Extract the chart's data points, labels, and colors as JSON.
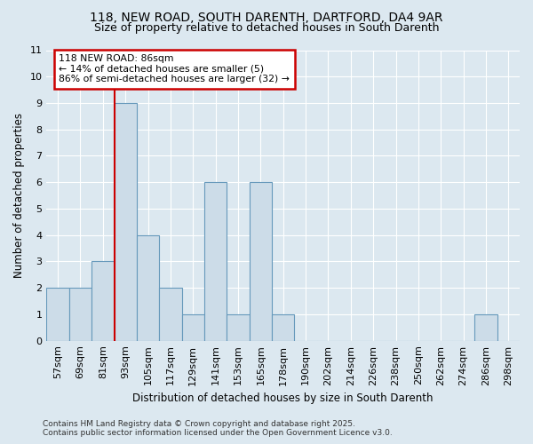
{
  "title_line1": "118, NEW ROAD, SOUTH DARENTH, DARTFORD, DA4 9AR",
  "title_line2": "Size of property relative to detached houses in South Darenth",
  "xlabel": "Distribution of detached houses by size in South Darenth",
  "ylabel": "Number of detached properties",
  "categories": [
    "57sqm",
    "69sqm",
    "81sqm",
    "93sqm",
    "105sqm",
    "117sqm",
    "129sqm",
    "141sqm",
    "153sqm",
    "165sqm",
    "178sqm",
    "190sqm",
    "202sqm",
    "214sqm",
    "226sqm",
    "238sqm",
    "250sqm",
    "262sqm",
    "274sqm",
    "286sqm",
    "298sqm"
  ],
  "values": [
    2,
    2,
    3,
    9,
    4,
    2,
    1,
    6,
    1,
    6,
    1,
    0,
    0,
    0,
    0,
    0,
    0,
    0,
    0,
    1,
    0
  ],
  "bar_color": "#ccdce8",
  "bar_edge_color": "#6699bb",
  "red_line_index": 2,
  "annotation_text": "118 NEW ROAD: 86sqm\n← 14% of detached houses are smaller (5)\n86% of semi-detached houses are larger (32) →",
  "annotation_box_color": "#ffffff",
  "annotation_box_edge": "#cc0000",
  "ylim": [
    0,
    11
  ],
  "yticks": [
    0,
    1,
    2,
    3,
    4,
    5,
    6,
    7,
    8,
    9,
    10,
    11
  ],
  "footer_line1": "Contains HM Land Registry data © Crown copyright and database right 2025.",
  "footer_line2": "Contains public sector information licensed under the Open Government Licence v3.0.",
  "background_color": "#dce8f0",
  "grid_color": "#ffffff",
  "title_fontsize": 10,
  "subtitle_fontsize": 9,
  "axis_label_fontsize": 8.5,
  "tick_fontsize": 8,
  "footer_fontsize": 6.5
}
